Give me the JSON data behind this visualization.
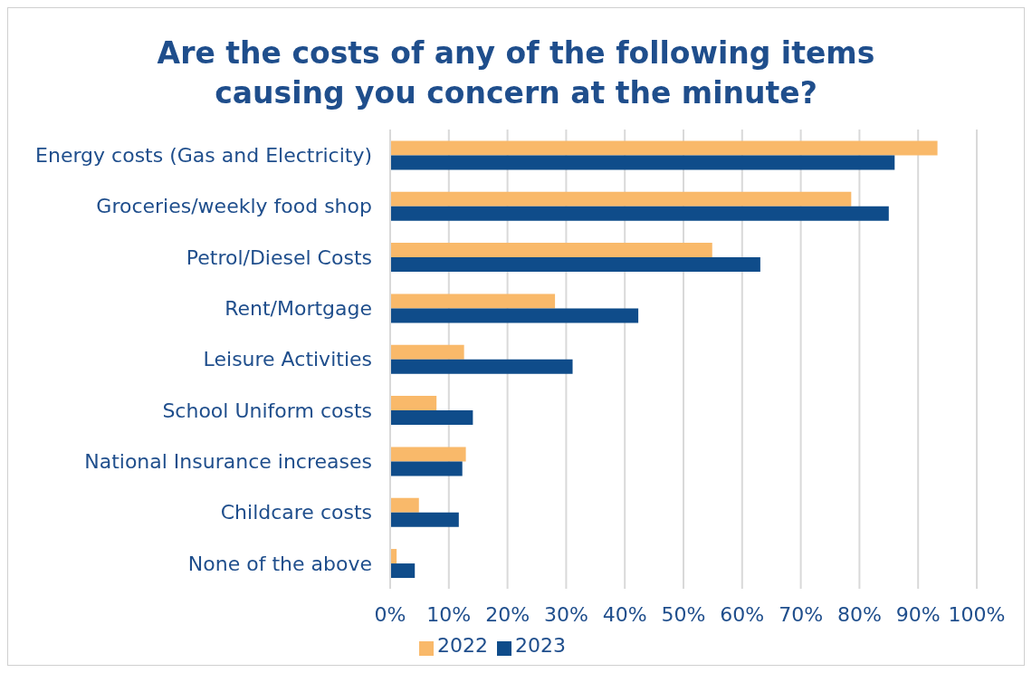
{
  "chart_data": {
    "type": "bar",
    "orientation": "horizontal",
    "title": "Are the costs of any of the following items causing you concern at the minute?",
    "categories": [
      "Energy costs (Gas and Electricity)",
      "Groceries/weekly food shop",
      "Petrol/Diesel Costs",
      "Rent/Mortgage",
      "Leisure Activities",
      "School Uniform costs",
      "National Insurance increases",
      "Childcare costs",
      "None of the above"
    ],
    "series": [
      {
        "name": "2022",
        "color": "#f9b96a",
        "values": [
          93.3,
          78.6,
          54.9,
          28.1,
          12.6,
          7.9,
          12.9,
          4.9,
          1.1
        ]
      },
      {
        "name": "2023",
        "color": "#0f4c8a",
        "values": [
          86.0,
          85.0,
          63.1,
          42.3,
          31.1,
          14.1,
          12.3,
          11.7,
          4.2
        ]
      }
    ],
    "xlim": [
      0,
      100
    ],
    "xticks": [
      {
        "value": 0,
        "label": "0%"
      },
      {
        "value": 10,
        "label": "10%"
      },
      {
        "value": 20,
        "label": "20%"
      },
      {
        "value": 30,
        "label": "30%"
      },
      {
        "value": 40,
        "label": "40%"
      },
      {
        "value": 50,
        "label": "50%"
      },
      {
        "value": 60,
        "label": "60%"
      },
      {
        "value": 70,
        "label": "70%"
      },
      {
        "value": 80,
        "label": "80%"
      },
      {
        "value": 90,
        "label": "90%"
      },
      {
        "value": 100,
        "label": "100%"
      }
    ],
    "grid": "x",
    "legend": "bottom"
  }
}
